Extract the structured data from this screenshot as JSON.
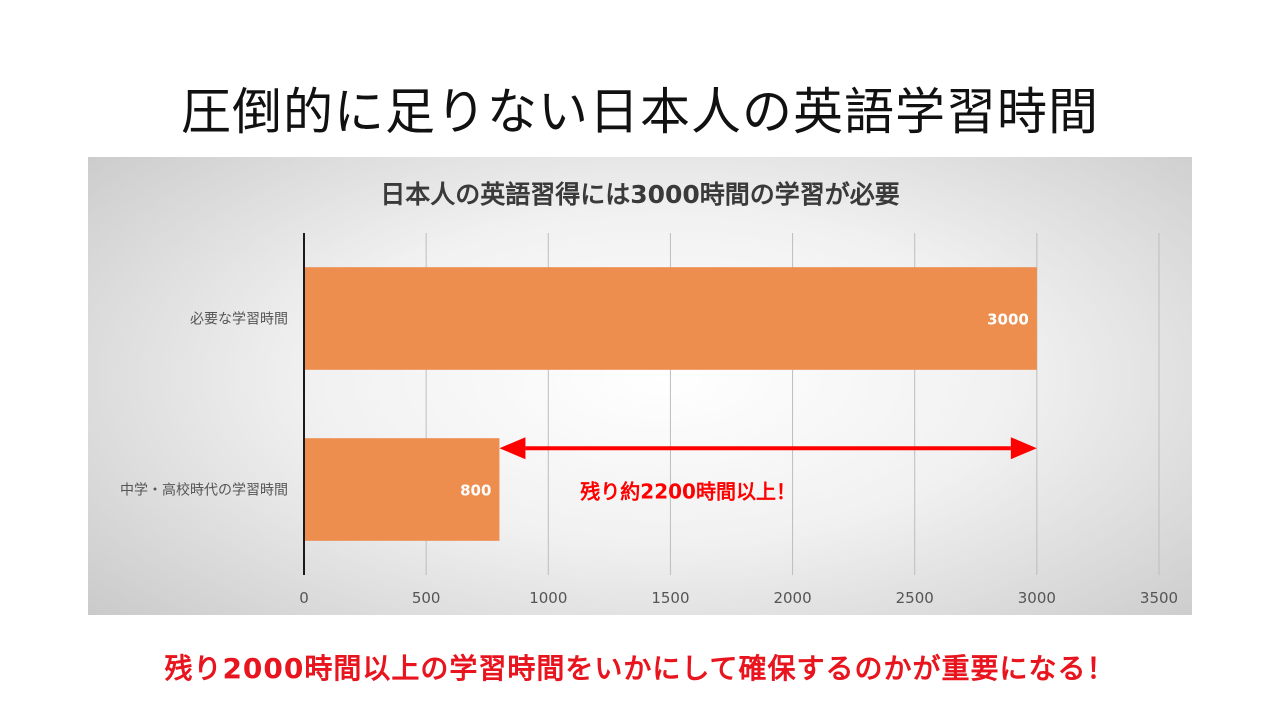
{
  "slide": {
    "title": "圧倒的に足りない日本人の英語学習時間",
    "footer_note": "残り2000時間以上の学習時間をいかにして確保するのかが重要になる！"
  },
  "chart_data": {
    "type": "bar",
    "orientation": "horizontal",
    "title": "日本人の英語習得には3000時間の学習が必要",
    "categories": [
      "必要な学習時間",
      "中学・高校時代の学習時間"
    ],
    "values": [
      3000,
      800
    ],
    "data_labels": [
      "3000",
      "800"
    ],
    "xlim": [
      0,
      3500
    ],
    "x_ticks": [
      0,
      500,
      1000,
      1500,
      2000,
      2500,
      3000,
      3500
    ],
    "x_tick_labels": [
      "0",
      "500",
      "1000",
      "1500",
      "2000",
      "2500",
      "3000",
      "3500"
    ],
    "grid": true,
    "bar_color": "#ed8e4f",
    "annotation": {
      "text": "残り約2200時間以上！",
      "from_value": 800,
      "to_value": 3000,
      "color": "#ff0000"
    }
  }
}
